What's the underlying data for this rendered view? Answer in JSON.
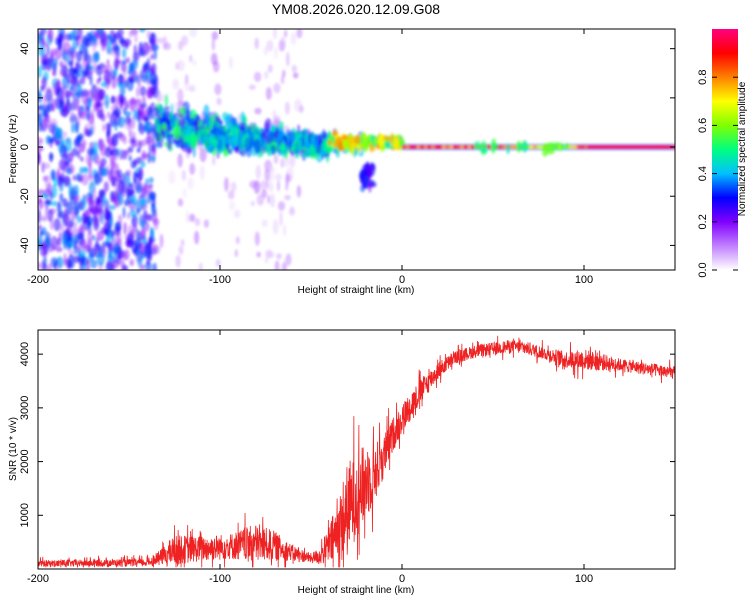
{
  "title": "YM08.2026.020.12.09.G08",
  "chart_data": [
    {
      "type": "heatmap",
      "xlabel": "Height of straight line (km)",
      "ylabel": "Frequency (Hz)",
      "xlim": [
        -200,
        150
      ],
      "ylim": [
        -50,
        48
      ],
      "xticks": [
        -200,
        -100,
        0,
        100
      ],
      "yticks": [
        -40,
        -20,
        0,
        20,
        40
      ],
      "colorbar": {
        "label": "Normalized spectral amplitude",
        "range": [
          0,
          1
        ],
        "ticks": [
          0.0,
          0.2,
          0.4,
          0.6,
          0.8
        ],
        "colors": [
          "#ffffff",
          "#c080ff",
          "#8000ff",
          "#0000ff",
          "#00c0ff",
          "#00ff80",
          "#80ff00",
          "#ffff00",
          "#ff8000",
          "#ff0000",
          "#ff0080"
        ]
      },
      "regions": [
        {
          "name": "broadband noise",
          "x": [
            -200,
            -135
          ],
          "freq": [
            -50,
            48
          ],
          "amplitude": 0.3
        },
        {
          "name": "scattered noise",
          "x": [
            -135,
            -60
          ],
          "freq": [
            -50,
            48
          ],
          "amplitude": 0.1
        },
        {
          "name": "diffuse signal",
          "x": [
            -135,
            -40
          ],
          "freq": [
            -15,
            18
          ],
          "amplitude": 0.35
        },
        {
          "name": "converging signal",
          "x": [
            -40,
            0
          ],
          "freq": [
            -4,
            6
          ],
          "amplitude": 0.6
        },
        {
          "name": "carrier line",
          "x": [
            0,
            150
          ],
          "freq": [
            -1,
            1
          ],
          "amplitude": 0.9
        }
      ]
    },
    {
      "type": "line",
      "xlabel": "Height of straight line (km)",
      "ylabel": "SNR (10 * v/v)",
      "xlim": [
        -200,
        150
      ],
      "ylim": [
        0,
        4450
      ],
      "xticks": [
        -200,
        -100,
        0,
        100
      ],
      "yticks": [
        1000,
        2000,
        3000,
        4000
      ],
      "color": "#ee2222",
      "envelope": {
        "x": [
          -200,
          -140,
          -135,
          -125,
          -110,
          -95,
          -80,
          -70,
          -60,
          -50,
          -45,
          -40,
          -35,
          -30,
          -25,
          -20,
          -15,
          -10,
          -5,
          0,
          10,
          20,
          30,
          40,
          50,
          60,
          70,
          80,
          90,
          100,
          110,
          120,
          130,
          140,
          150
        ],
        "mean": [
          100,
          120,
          180,
          350,
          380,
          420,
          480,
          430,
          300,
          200,
          250,
          450,
          700,
          1100,
          1400,
          1600,
          1800,
          2100,
          2500,
          2800,
          3300,
          3700,
          3950,
          4050,
          4100,
          4150,
          4100,
          4000,
          3900,
          3900,
          3850,
          3800,
          3750,
          3700,
          3650
        ],
        "spread": [
          80,
          90,
          120,
          350,
          300,
          300,
          450,
          350,
          180,
          120,
          200,
          450,
          800,
          1100,
          1000,
          900,
          700,
          500,
          400,
          350,
          300,
          200,
          150,
          150,
          150,
          150,
          150,
          150,
          200,
          250,
          200,
          150,
          150,
          150,
          150
        ]
      }
    }
  ]
}
